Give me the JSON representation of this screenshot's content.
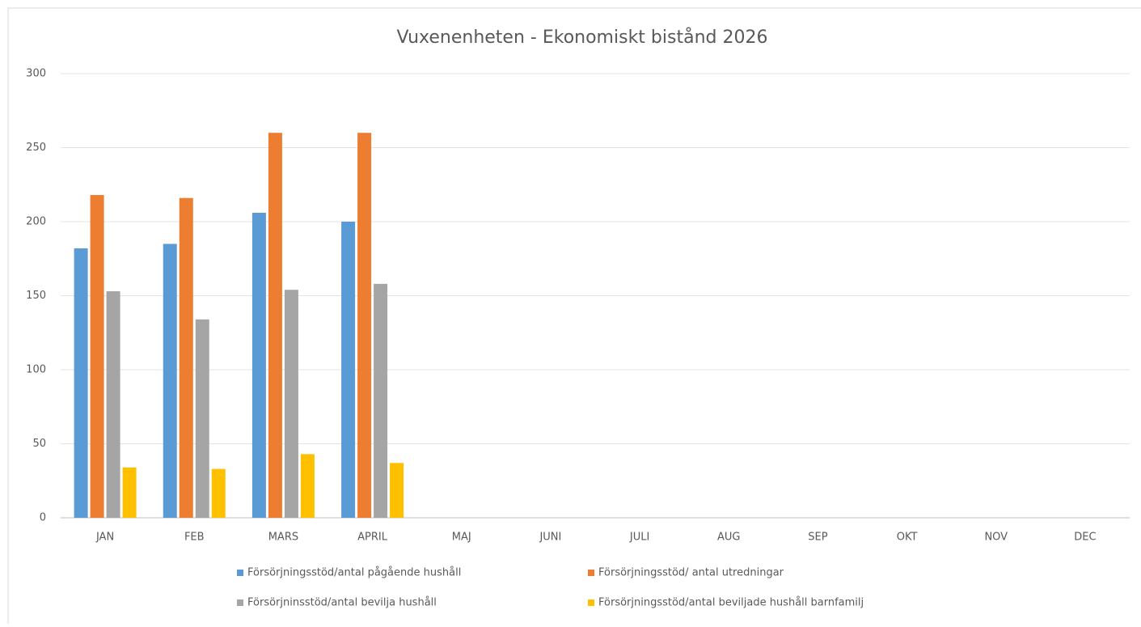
{
  "chart_data": {
    "type": "bar",
    "title": "Vuxenenheten - Ekonomiskt bistånd 2026",
    "categories": [
      "JAN",
      "FEB",
      "MARS",
      "APRIL",
      "MAJ",
      "JUNI",
      "JULI",
      "AUG",
      "SEP",
      "OKT",
      "NOV",
      "DEC"
    ],
    "series": [
      {
        "name": "Försörjningsstöd/antal pågående hushåll",
        "color": "#5b9bd5",
        "values": [
          182,
          185,
          206,
          200,
          null,
          null,
          null,
          null,
          null,
          null,
          null,
          null
        ]
      },
      {
        "name": "Försörjningsstöd/ antal utredningar",
        "color": "#ed7d31",
        "values": [
          218,
          216,
          260,
          260,
          null,
          null,
          null,
          null,
          null,
          null,
          null,
          null
        ]
      },
      {
        "name": "Försörjninsstöd/antal bevilja hushåll",
        "color": "#a5a5a5",
        "values": [
          153,
          134,
          154,
          158,
          null,
          null,
          null,
          null,
          null,
          null,
          null,
          null
        ]
      },
      {
        "name": "Försörjningsstöd/antal beviljade hushåll barnfamilj",
        "color": "#ffc000",
        "values": [
          34,
          33,
          43,
          37,
          null,
          null,
          null,
          null,
          null,
          null,
          null,
          null
        ]
      }
    ],
    "ylim": [
      0,
      300
    ],
    "yticks": [
      0,
      50,
      100,
      150,
      200,
      250,
      300
    ],
    "grid": true,
    "legend": "bottom"
  }
}
